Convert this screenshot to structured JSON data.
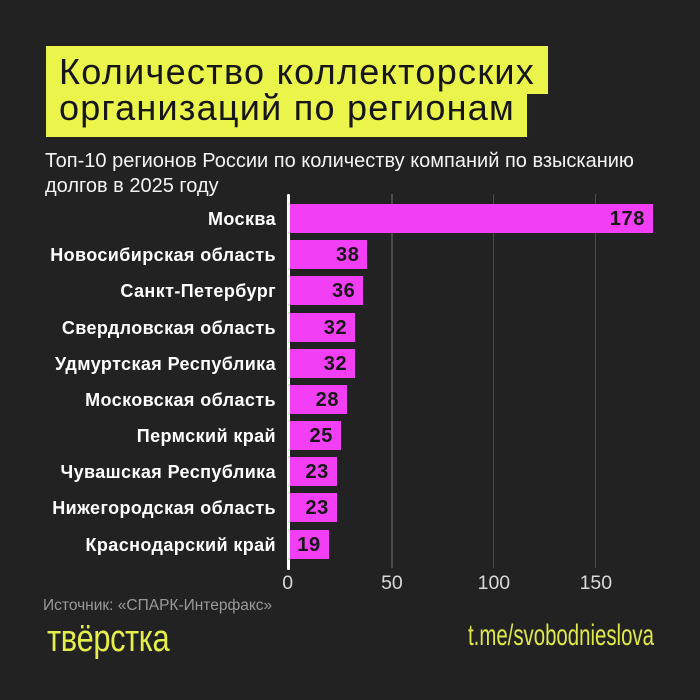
{
  "page": {
    "background_color": "#222222",
    "accent_yellow": "#ebf44b",
    "accent_pink": "#f23ff5"
  },
  "header": {
    "title_line1": "Количество коллекторских",
    "title_line2": "организаций по регионам",
    "subtitle_line1": "Топ-10 регионов России по количеству компаний по взысканию",
    "subtitle_line2": "долгов в 2025 году"
  },
  "chart_data": {
    "type": "bar",
    "orientation": "horizontal",
    "title": "Количество коллекторских организаций по регионам",
    "subtitle": "Топ-10 регионов России по количеству компаний по взысканию долгов в 2025 году",
    "categories": [
      "Москва",
      "Новосибирская область",
      "Санкт-Петербург",
      "Свердловская область",
      "Удмуртская Республика",
      "Московская область",
      "Пермский край",
      "Чувашская Республика",
      "Нижегородская область",
      "Краснодарский край"
    ],
    "values": [
      178,
      38,
      36,
      32,
      32,
      28,
      25,
      23,
      23,
      19
    ],
    "bar_color": "#f23ff5",
    "value_label_color": "#161616",
    "xticks": [
      0,
      50,
      100,
      150
    ],
    "xlim": [
      0,
      196
    ],
    "grid": "vertical",
    "gridline_color": "#4b4b4b",
    "xlabel": "",
    "ylabel": ""
  },
  "footer": {
    "source": "Источник: «СПАРК-Интерфакс»",
    "logo_text": "твёрстка",
    "channel": "t.me/svobodnieslova"
  }
}
